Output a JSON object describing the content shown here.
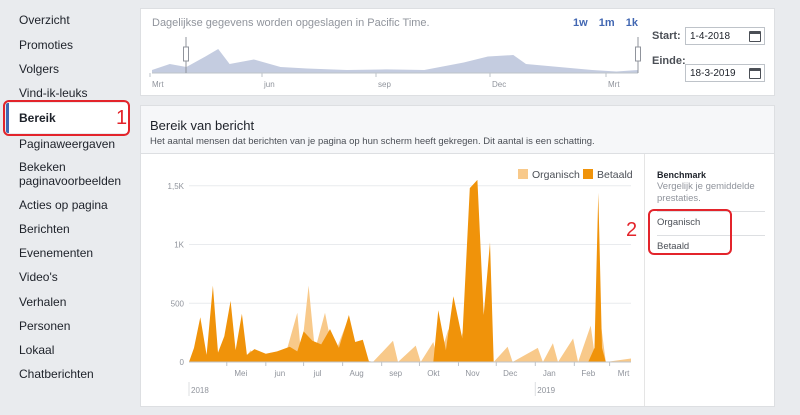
{
  "sidebar": {
    "items": [
      "Overzicht",
      "Promoties",
      "Volgers",
      "Vind-ik-leuks",
      "Bereik",
      "Paginaweergaven",
      "Bekeken paginavoorbeelden",
      "Acties op pagina",
      "Berichten",
      "Evenementen",
      "Video's",
      "Verhalen",
      "Personen",
      "Lokaal",
      "Chatberichten"
    ],
    "active_item": "Bereik"
  },
  "annotations": {
    "label_1": "1",
    "label_2": "2",
    "color": "#e3242b"
  },
  "timeline": {
    "note": "Dagelijkse gegevens worden opgeslagen in Pacific Time.",
    "zoom": [
      "1w",
      "1m",
      "1k"
    ],
    "month_labels": [
      "Mrt",
      "jun",
      "sep",
      "Dec",
      "Mrt"
    ],
    "start_label": "Start:",
    "start_date": "1-4-2018",
    "end_label": "Einde:",
    "end_date": "18-3-2019"
  },
  "main": {
    "title": "Bereik van bericht",
    "subtitle": "Het aantal mensen dat berichten van je pagina op hun scherm heeft gekregen. Dit aantal is een schatting."
  },
  "benchmark": {
    "title": "Benchmark",
    "subtitle": "Vergelijk je gemiddelde prestaties.",
    "options": [
      "Organisch",
      "Betaald"
    ]
  },
  "chart_data": {
    "type": "area",
    "title": "",
    "xlabel": "",
    "ylabel": "",
    "ylim": [
      0,
      1600
    ],
    "yticks": [
      0,
      500,
      1000,
      1500
    ],
    "ytick_labels": [
      "0",
      "500",
      "1K",
      "1,5K"
    ],
    "month_labels": [
      "Mei",
      "jun",
      "jul",
      "Aug",
      "sep",
      "Okt",
      "Nov",
      "Dec",
      "Jan",
      "Feb",
      "Mrt"
    ],
    "year_labels": [
      "2018",
      "2019"
    ],
    "legend_position": "top-right",
    "grid": true,
    "x_range": [
      "2018-04-01",
      "2019-03-18"
    ],
    "series": [
      {
        "name": "Organisch",
        "color": "#f8c98a",
        "points": [
          [
            "2018-04-01",
            0
          ],
          [
            "2018-04-08",
            80
          ],
          [
            "2018-04-14",
            0
          ],
          [
            "2018-04-22",
            120
          ],
          [
            "2018-04-28",
            0
          ],
          [
            "2018-05-06",
            150
          ],
          [
            "2018-05-13",
            0
          ],
          [
            "2018-05-20",
            100
          ],
          [
            "2018-05-27",
            0
          ],
          [
            "2018-06-05",
            80
          ],
          [
            "2018-06-15",
            0
          ],
          [
            "2018-06-26",
            420
          ],
          [
            "2018-06-29",
            60
          ],
          [
            "2018-07-05",
            650
          ],
          [
            "2018-07-10",
            100
          ],
          [
            "2018-07-18",
            420
          ],
          [
            "2018-07-25",
            50
          ],
          [
            "2018-08-06",
            380
          ],
          [
            "2018-08-12",
            40
          ],
          [
            "2018-08-25",
            0
          ],
          [
            "2018-09-10",
            180
          ],
          [
            "2018-09-14",
            0
          ],
          [
            "2018-09-28",
            140
          ],
          [
            "2018-10-02",
            0
          ],
          [
            "2018-10-12",
            170
          ],
          [
            "2018-10-16",
            0
          ],
          [
            "2018-10-24",
            280
          ],
          [
            "2018-10-29",
            0
          ],
          [
            "2018-11-06",
            320
          ],
          [
            "2018-11-11",
            0
          ],
          [
            "2018-11-24",
            190
          ],
          [
            "2018-11-29",
            0
          ],
          [
            "2018-12-10",
            130
          ],
          [
            "2018-12-14",
            0
          ],
          [
            "2019-01-03",
            120
          ],
          [
            "2019-01-07",
            0
          ],
          [
            "2019-01-15",
            160
          ],
          [
            "2019-01-19",
            0
          ],
          [
            "2019-01-31",
            200
          ],
          [
            "2019-02-04",
            0
          ],
          [
            "2019-02-14",
            310
          ],
          [
            "2019-02-18",
            0
          ],
          [
            "2019-02-22",
            330
          ],
          [
            "2019-02-26",
            0
          ],
          [
            "2019-03-18",
            30
          ]
        ]
      },
      {
        "name": "Betaald",
        "color": "#f0930a",
        "points": [
          [
            "2018-04-01",
            0
          ],
          [
            "2018-04-05",
            120
          ],
          [
            "2018-04-10",
            380
          ],
          [
            "2018-04-15",
            60
          ],
          [
            "2018-04-20",
            650
          ],
          [
            "2018-04-24",
            80
          ],
          [
            "2018-04-29",
            220
          ],
          [
            "2018-05-04",
            520
          ],
          [
            "2018-05-08",
            100
          ],
          [
            "2018-05-13",
            410
          ],
          [
            "2018-05-17",
            60
          ],
          [
            "2018-05-23",
            110
          ],
          [
            "2018-06-01",
            70
          ],
          [
            "2018-06-10",
            90
          ],
          [
            "2018-06-20",
            130
          ],
          [
            "2018-06-26",
            90
          ],
          [
            "2018-07-01",
            260
          ],
          [
            "2018-07-08",
            180
          ],
          [
            "2018-07-15",
            150
          ],
          [
            "2018-07-22",
            280
          ],
          [
            "2018-07-29",
            120
          ],
          [
            "2018-08-06",
            400
          ],
          [
            "2018-08-11",
            170
          ],
          [
            "2018-08-17",
            190
          ],
          [
            "2018-08-22",
            0
          ],
          [
            "2018-10-12",
            0
          ],
          [
            "2018-10-16",
            440
          ],
          [
            "2018-10-22",
            100
          ],
          [
            "2018-10-28",
            560
          ],
          [
            "2018-11-04",
            200
          ],
          [
            "2018-11-10",
            1480
          ],
          [
            "2018-11-16",
            1550
          ],
          [
            "2018-11-21",
            400
          ],
          [
            "2018-11-26",
            1020
          ],
          [
            "2018-11-29",
            0
          ],
          [
            "2019-02-12",
            0
          ],
          [
            "2019-02-17",
            120
          ],
          [
            "2019-02-20",
            1440
          ],
          [
            "2019-02-23",
            120
          ],
          [
            "2019-02-26",
            0
          ]
        ]
      }
    ]
  },
  "mini_timeline": {
    "type": "area",
    "color": "#c4cce0",
    "points": [
      [
        "2016-03-01",
        0.1
      ],
      [
        "2016-03-15",
        0.3
      ],
      [
        "2016-03-28",
        0.2
      ],
      [
        "2016-04-12",
        0.55
      ],
      [
        "2016-04-22",
        0.8
      ],
      [
        "2016-05-01",
        0.3
      ],
      [
        "2016-05-20",
        0.45
      ],
      [
        "2016-06-10",
        0.2
      ],
      [
        "2016-07-01",
        0.15
      ],
      [
        "2016-08-01",
        0.1
      ],
      [
        "2016-09-01",
        0.12
      ],
      [
        "2016-10-01",
        0.1
      ],
      [
        "2016-11-01",
        0.35
      ],
      [
        "2016-11-20",
        0.55
      ],
      [
        "2016-12-10",
        0.6
      ],
      [
        "2016-12-20",
        0.3
      ],
      [
        "2017-01-15",
        0.2
      ],
      [
        "2017-02-10",
        0.1
      ],
      [
        "2017-03-01",
        0.05
      ],
      [
        "2017-03-18",
        0.1
      ]
    ]
  }
}
